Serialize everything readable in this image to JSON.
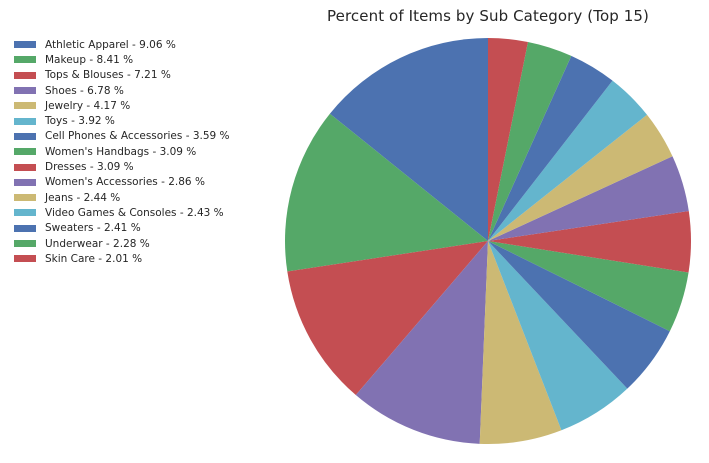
{
  "chart_data": {
    "type": "pie",
    "title": "Percent of Items by Sub Category (Top 15)",
    "labels": [
      "Athletic Apparel",
      "Makeup",
      "Tops & Blouses",
      "Shoes",
      "Jewelry",
      "Toys",
      "Cell Phones & Accessories",
      "Women's Handbags",
      "Dresses",
      "Women's Accessories",
      "Jeans",
      "Video Games & Consoles",
      "Sweaters",
      "Underwear",
      "Skin Care"
    ],
    "values": [
      9.06,
      8.41,
      7.21,
      6.78,
      4.17,
      3.92,
      3.59,
      3.09,
      3.09,
      2.86,
      2.44,
      2.43,
      2.41,
      2.28,
      2.01
    ],
    "legend_entries": [
      "Athletic Apparel - 9.06 %",
      "Makeup - 8.41 %",
      "Tops & Blouses - 7.21 %",
      "Shoes - 6.78 %",
      "Jewelry - 4.17 %",
      "Toys - 3.92 %",
      "Cell Phones & Accessories - 3.59 %",
      "Women's Handbags - 3.09 %",
      "Dresses - 3.09 %",
      "Women's Accessories - 2.86 %",
      "Jeans - 2.44 %",
      "Video Games & Consoles - 2.43 %",
      "Sweaters - 2.41 %",
      "Underwear - 2.28 %",
      "Skin Care - 2.01 %"
    ],
    "colors": [
      "#4c72b0",
      "#55a868",
      "#c44e52",
      "#8172b2",
      "#ccb974",
      "#64b5cd",
      "#4c72b0",
      "#55a868",
      "#c44e52",
      "#8172b2",
      "#ccb974",
      "#64b5cd",
      "#4c72b0",
      "#55a868",
      "#c44e52"
    ],
    "start_angle_deg": 90,
    "direction": "counterclockwise",
    "legend_position": "upper-left"
  }
}
